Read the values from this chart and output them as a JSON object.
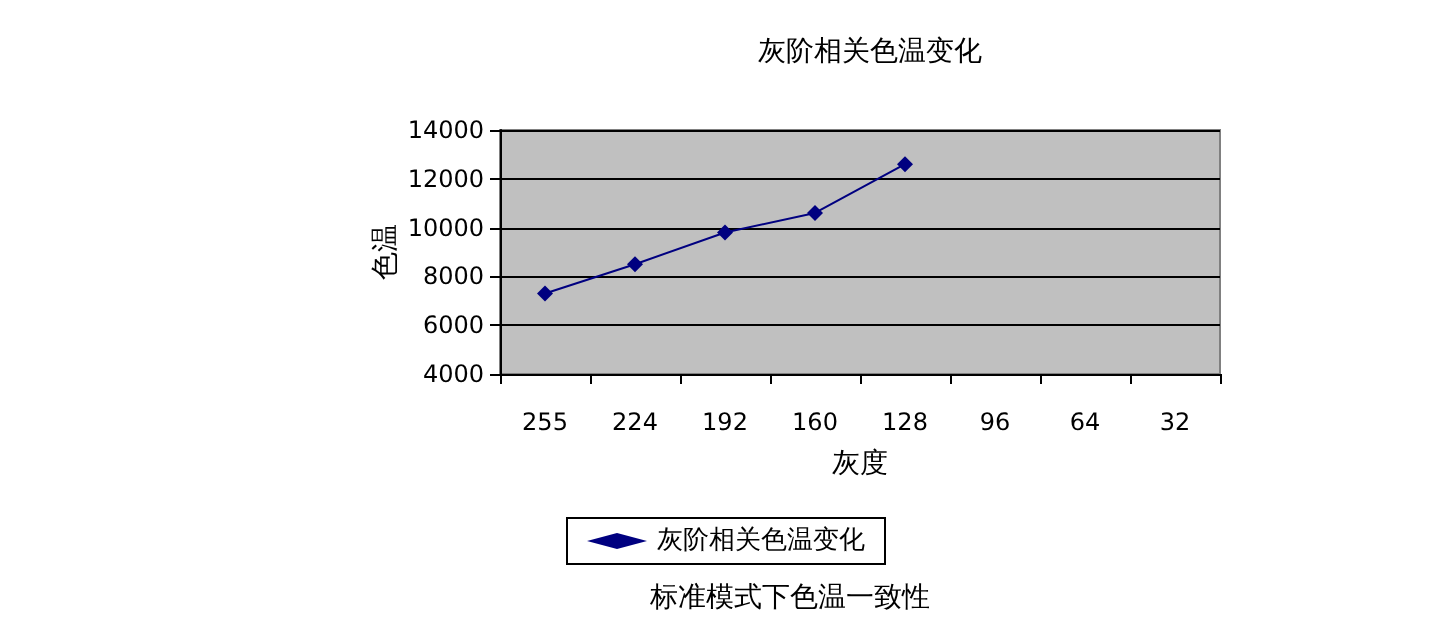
{
  "chart_data": {
    "type": "line",
    "title": "灰阶相关色温变化",
    "xlabel": "灰度",
    "ylabel": "色温",
    "categories": [
      "255",
      "224",
      "192",
      "160",
      "128",
      "96",
      "64",
      "32"
    ],
    "series": [
      {
        "name": "灰阶相关色温变化",
        "color": "#000080",
        "values": [
          7300,
          8500,
          9800,
          10600,
          12600,
          null,
          null,
          null
        ]
      }
    ],
    "ylim": [
      4000,
      14000
    ],
    "yticks": [
      4000,
      6000,
      8000,
      10000,
      12000,
      14000
    ],
    "grid": "y",
    "legend": "bottom",
    "marker": "diamond",
    "line_style": "solid",
    "annotations": [
      "标准模式下色温一致性"
    ]
  }
}
